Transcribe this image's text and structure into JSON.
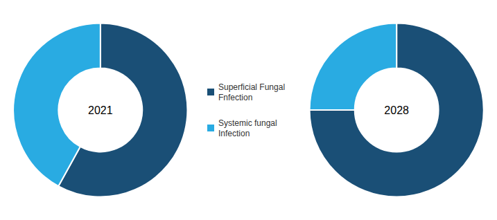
{
  "chart_data": [
    {
      "type": "pie",
      "title": "2021",
      "categories": [
        "Superficial Fungal\nFnfection",
        "Systemic fungal\nInfection"
      ],
      "values": [
        58,
        42
      ],
      "colors": [
        "#1a4f76",
        "#29abe2"
      ],
      "legend": "right"
    },
    {
      "type": "pie",
      "title": "2028",
      "categories": [
        "Superficial Fungal\nFnfection",
        "Systemic fungal\nInfection"
      ],
      "values": [
        75,
        25
      ],
      "colors": [
        "#1a4f76",
        "#29abe2"
      ]
    }
  ]
}
